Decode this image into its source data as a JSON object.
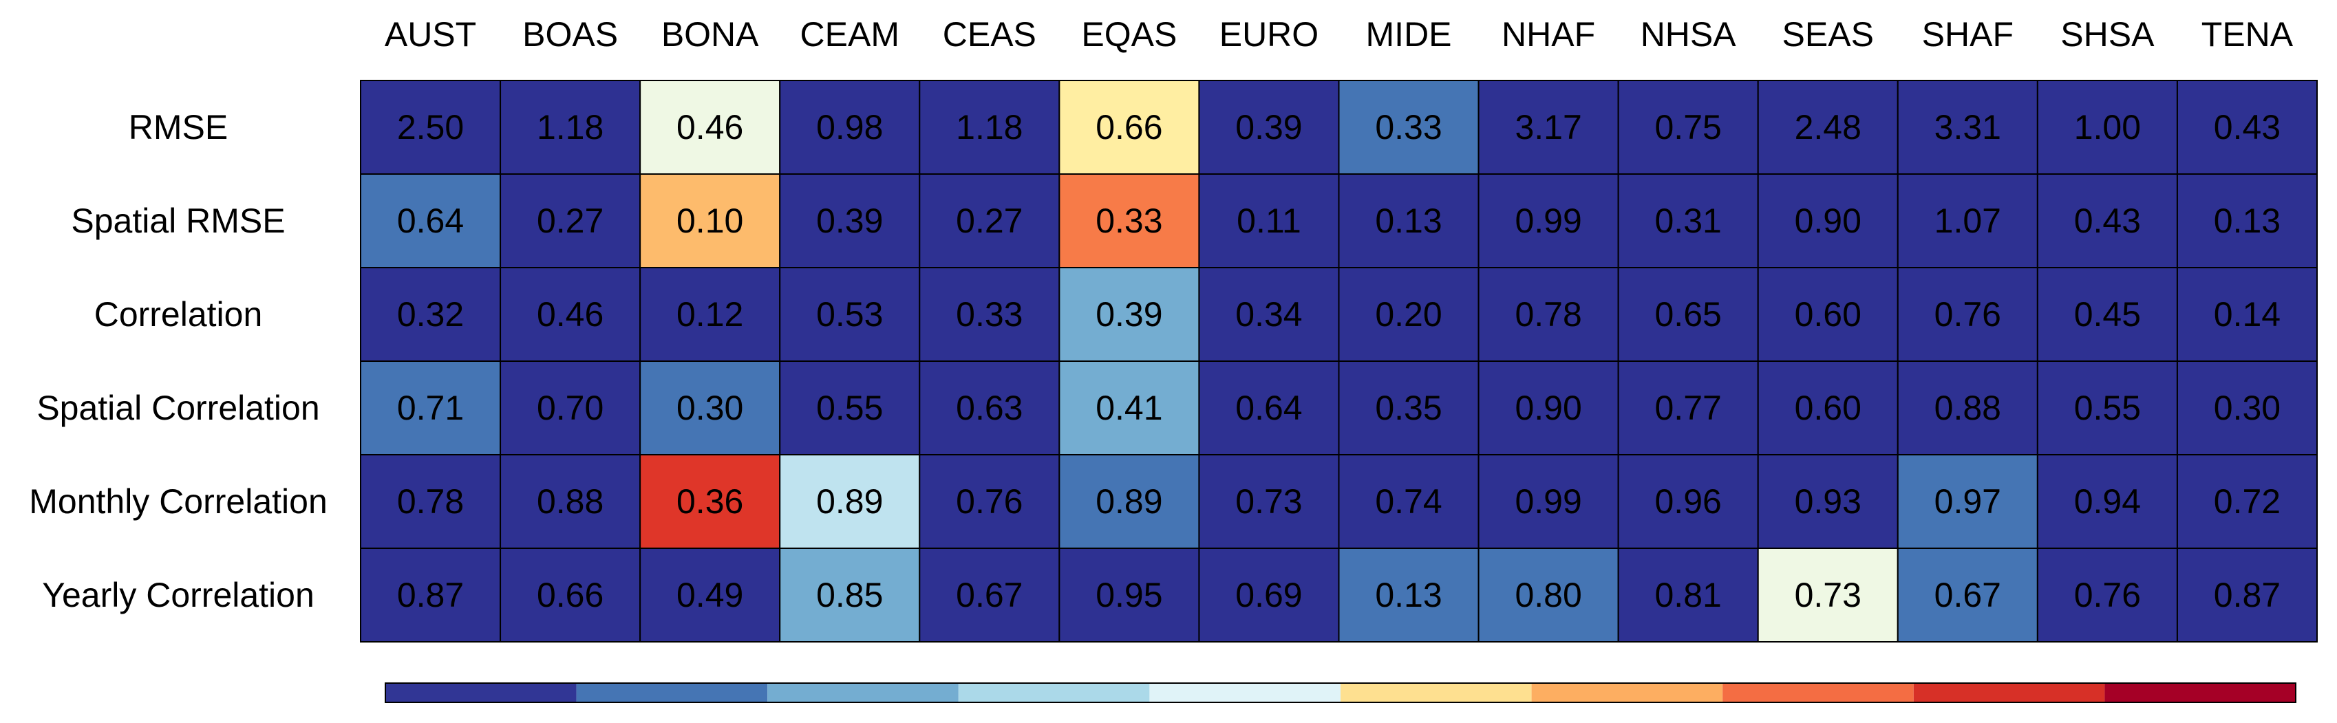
{
  "chart_data": {
    "type": "heatmap",
    "title": "",
    "xlabel": "",
    "ylabel": "",
    "columns": [
      "AUST",
      "BOAS",
      "BONA",
      "CEAM",
      "CEAS",
      "EQAS",
      "EURO",
      "MIDE",
      "NHAF",
      "NHSA",
      "SEAS",
      "SHAF",
      "SHSA",
      "TENA"
    ],
    "rows": [
      "RMSE",
      "Spatial RMSE",
      "Correlation",
      "Spatial Correlation",
      "Monthly Correlation",
      "Yearly Correlation"
    ],
    "values": [
      [
        "2.50",
        "1.18",
        "0.46",
        "0.98",
        "1.18",
        "0.66",
        "0.39",
        "0.33",
        "3.17",
        "0.75",
        "2.48",
        "3.31",
        "1.00",
        "0.43"
      ],
      [
        "0.64",
        "0.27",
        "0.10",
        "0.39",
        "0.27",
        "0.33",
        "0.11",
        "0.13",
        "0.99",
        "0.31",
        "0.90",
        "1.07",
        "0.43",
        "0.13"
      ],
      [
        "0.32",
        "0.46",
        "0.12",
        "0.53",
        "0.33",
        "0.39",
        "0.34",
        "0.20",
        "0.78",
        "0.65",
        "0.60",
        "0.76",
        "0.45",
        "0.14"
      ],
      [
        "0.71",
        "0.70",
        "0.30",
        "0.55",
        "0.63",
        "0.41",
        "0.64",
        "0.35",
        "0.90",
        "0.77",
        "0.60",
        "0.88",
        "0.55",
        "0.30"
      ],
      [
        "0.78",
        "0.88",
        "0.36",
        "0.89",
        "0.76",
        "0.89",
        "0.73",
        "0.74",
        "0.99",
        "0.96",
        "0.93",
        "0.97",
        "0.94",
        "0.72"
      ],
      [
        "0.87",
        "0.66",
        "0.49",
        "0.85",
        "0.67",
        "0.95",
        "0.69",
        "0.13",
        "0.80",
        "0.81",
        "0.73",
        "0.67",
        "0.76",
        "0.87"
      ]
    ],
    "color_levels": [
      [
        0,
        0,
        4,
        0,
        0,
        5,
        0,
        1,
        0,
        0,
        0,
        0,
        0,
        0
      ],
      [
        1,
        0,
        6,
        0,
        0,
        7,
        0,
        0,
        0,
        0,
        0,
        0,
        0,
        0
      ],
      [
        0,
        0,
        0,
        0,
        0,
        2,
        0,
        0,
        0,
        0,
        0,
        0,
        0,
        0
      ],
      [
        1,
        0,
        1,
        0,
        0,
        2,
        0,
        0,
        0,
        0,
        0,
        0,
        0,
        0
      ],
      [
        0,
        0,
        8,
        3,
        0,
        1,
        0,
        0,
        0,
        0,
        0,
        1,
        0,
        0
      ],
      [
        0,
        0,
        0,
        2,
        0,
        0,
        0,
        1,
        1,
        0,
        4,
        1,
        0,
        0
      ]
    ],
    "colorbar": {
      "colors": [
        "#313695",
        "#4575b4",
        "#74add1",
        "#abd9e9",
        "#e0f3f8",
        "#fee090",
        "#fdae61",
        "#f46d43",
        "#d73027",
        "#a50026"
      ],
      "cell_colors": [
        "#2e3192",
        "#4575b4",
        "#74add1",
        "#bfe3ef",
        "#eff8e4",
        "#ffeea2",
        "#fdbb6c",
        "#f77b48",
        "#df3629",
        "#a50026"
      ]
    },
    "grid": true,
    "legend": "bottom"
  }
}
